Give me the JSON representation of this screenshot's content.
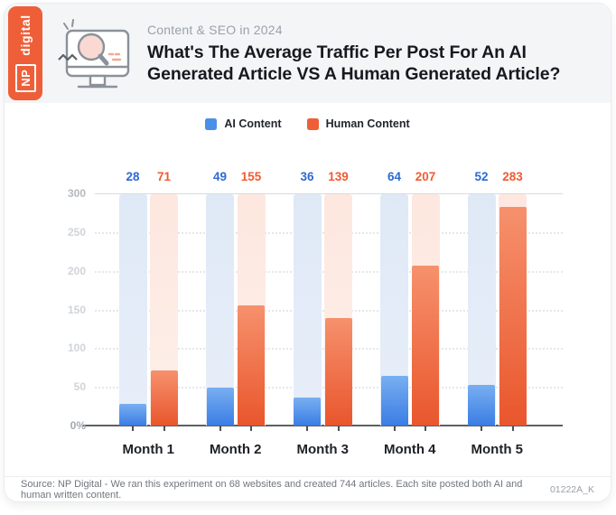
{
  "brand": {
    "np": "NP",
    "digital": "digital"
  },
  "header": {
    "eyebrow": "Content & SEO in 2024",
    "title_lines": [
      "What's The Average Traffic Per Post For An AI",
      "Generated Article VS A Human Generated Article?"
    ]
  },
  "chart_data": {
    "type": "bar",
    "title": "What's The Average Traffic Per Post For An AI Generated Article VS A Human Generated Article?",
    "categories": [
      "Month 1",
      "Month 2",
      "Month 3",
      "Month 4",
      "Month 5"
    ],
    "series": [
      {
        "name": "AI Content",
        "color": "#4a90e8",
        "values": [
          28,
          49,
          36,
          64,
          52
        ]
      },
      {
        "name": "Human Content",
        "color": "#ee5f39",
        "values": [
          71,
          155,
          139,
          207,
          283
        ]
      }
    ],
    "xlabel": "",
    "ylabel": "",
    "ylim": [
      0,
      300
    ],
    "yticks": [
      {
        "label": "300",
        "value": 300
      },
      {
        "label": "250",
        "value": 250
      },
      {
        "label": "200",
        "value": 200
      },
      {
        "label": "150",
        "value": 150
      },
      {
        "label": "100",
        "value": 100
      },
      {
        "label": "50",
        "value": 50
      },
      {
        "label": "0%",
        "value": 0
      }
    ],
    "grid": "horizontal-dotted",
    "legend_position": "top",
    "value_labels_shown": true
  },
  "colors": {
    "brand_orange": "#ee5f39",
    "ai_blue": "#4a90e8",
    "ai_bar_gradient": [
      "#79aff1",
      "#3a7de4"
    ],
    "human_bar_gradient": [
      "#f6916d",
      "#e9562c"
    ],
    "ai_background_column": "#e3ebf7",
    "human_background_column": "#fdebe4",
    "ai_value_label": "#2d6ad1",
    "human_value_label": "#f15a31",
    "header_band": "#f4f5f7"
  },
  "footer": {
    "source": "Source: NP Digital - We ran this experiment on 68 websites and created 744 articles. Each site posted both AI and human written content.",
    "code": "01222A_K"
  }
}
